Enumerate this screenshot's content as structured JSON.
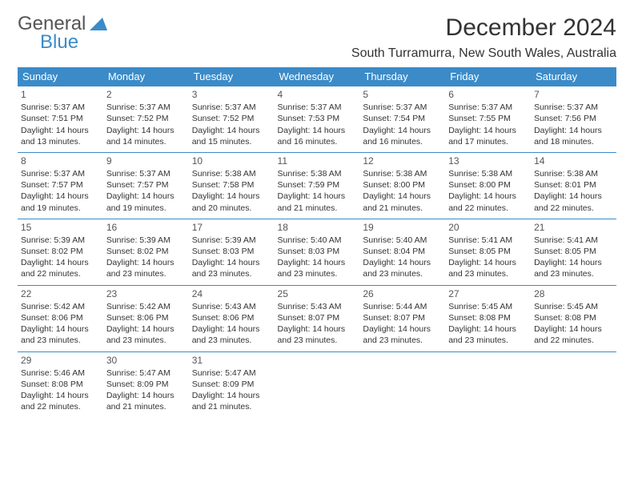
{
  "brand": {
    "part1": "General",
    "part2": "Blue"
  },
  "title": "December 2024",
  "location": "South Turramurra, New South Wales, Australia",
  "colors": {
    "header_bg": "#3b8bc9",
    "header_fg": "#ffffff",
    "border": "#3b8bc9",
    "text": "#333333",
    "logo_gray": "#555555",
    "logo_blue": "#3b8bc9"
  },
  "day_headers": [
    "Sunday",
    "Monday",
    "Tuesday",
    "Wednesday",
    "Thursday",
    "Friday",
    "Saturday"
  ],
  "weeks": [
    [
      {
        "n": "1",
        "sr": "5:37 AM",
        "ss": "7:51 PM",
        "dh": "14",
        "dm": "13"
      },
      {
        "n": "2",
        "sr": "5:37 AM",
        "ss": "7:52 PM",
        "dh": "14",
        "dm": "14"
      },
      {
        "n": "3",
        "sr": "5:37 AM",
        "ss": "7:52 PM",
        "dh": "14",
        "dm": "15"
      },
      {
        "n": "4",
        "sr": "5:37 AM",
        "ss": "7:53 PM",
        "dh": "14",
        "dm": "16"
      },
      {
        "n": "5",
        "sr": "5:37 AM",
        "ss": "7:54 PM",
        "dh": "14",
        "dm": "16"
      },
      {
        "n": "6",
        "sr": "5:37 AM",
        "ss": "7:55 PM",
        "dh": "14",
        "dm": "17"
      },
      {
        "n": "7",
        "sr": "5:37 AM",
        "ss": "7:56 PM",
        "dh": "14",
        "dm": "18"
      }
    ],
    [
      {
        "n": "8",
        "sr": "5:37 AM",
        "ss": "7:57 PM",
        "dh": "14",
        "dm": "19"
      },
      {
        "n": "9",
        "sr": "5:37 AM",
        "ss": "7:57 PM",
        "dh": "14",
        "dm": "19"
      },
      {
        "n": "10",
        "sr": "5:38 AM",
        "ss": "7:58 PM",
        "dh": "14",
        "dm": "20"
      },
      {
        "n": "11",
        "sr": "5:38 AM",
        "ss": "7:59 PM",
        "dh": "14",
        "dm": "21"
      },
      {
        "n": "12",
        "sr": "5:38 AM",
        "ss": "8:00 PM",
        "dh": "14",
        "dm": "21"
      },
      {
        "n": "13",
        "sr": "5:38 AM",
        "ss": "8:00 PM",
        "dh": "14",
        "dm": "22"
      },
      {
        "n": "14",
        "sr": "5:38 AM",
        "ss": "8:01 PM",
        "dh": "14",
        "dm": "22"
      }
    ],
    [
      {
        "n": "15",
        "sr": "5:39 AM",
        "ss": "8:02 PM",
        "dh": "14",
        "dm": "22"
      },
      {
        "n": "16",
        "sr": "5:39 AM",
        "ss": "8:02 PM",
        "dh": "14",
        "dm": "23"
      },
      {
        "n": "17",
        "sr": "5:39 AM",
        "ss": "8:03 PM",
        "dh": "14",
        "dm": "23"
      },
      {
        "n": "18",
        "sr": "5:40 AM",
        "ss": "8:03 PM",
        "dh": "14",
        "dm": "23"
      },
      {
        "n": "19",
        "sr": "5:40 AM",
        "ss": "8:04 PM",
        "dh": "14",
        "dm": "23"
      },
      {
        "n": "20",
        "sr": "5:41 AM",
        "ss": "8:05 PM",
        "dh": "14",
        "dm": "23"
      },
      {
        "n": "21",
        "sr": "5:41 AM",
        "ss": "8:05 PM",
        "dh": "14",
        "dm": "23"
      }
    ],
    [
      {
        "n": "22",
        "sr": "5:42 AM",
        "ss": "8:06 PM",
        "dh": "14",
        "dm": "23"
      },
      {
        "n": "23",
        "sr": "5:42 AM",
        "ss": "8:06 PM",
        "dh": "14",
        "dm": "23"
      },
      {
        "n": "24",
        "sr": "5:43 AM",
        "ss": "8:06 PM",
        "dh": "14",
        "dm": "23"
      },
      {
        "n": "25",
        "sr": "5:43 AM",
        "ss": "8:07 PM",
        "dh": "14",
        "dm": "23"
      },
      {
        "n": "26",
        "sr": "5:44 AM",
        "ss": "8:07 PM",
        "dh": "14",
        "dm": "23"
      },
      {
        "n": "27",
        "sr": "5:45 AM",
        "ss": "8:08 PM",
        "dh": "14",
        "dm": "23"
      },
      {
        "n": "28",
        "sr": "5:45 AM",
        "ss": "8:08 PM",
        "dh": "14",
        "dm": "22"
      }
    ],
    [
      {
        "n": "29",
        "sr": "5:46 AM",
        "ss": "8:08 PM",
        "dh": "14",
        "dm": "22"
      },
      {
        "n": "30",
        "sr": "5:47 AM",
        "ss": "8:09 PM",
        "dh": "14",
        "dm": "21"
      },
      {
        "n": "31",
        "sr": "5:47 AM",
        "ss": "8:09 PM",
        "dh": "14",
        "dm": "21"
      },
      null,
      null,
      null,
      null
    ]
  ]
}
